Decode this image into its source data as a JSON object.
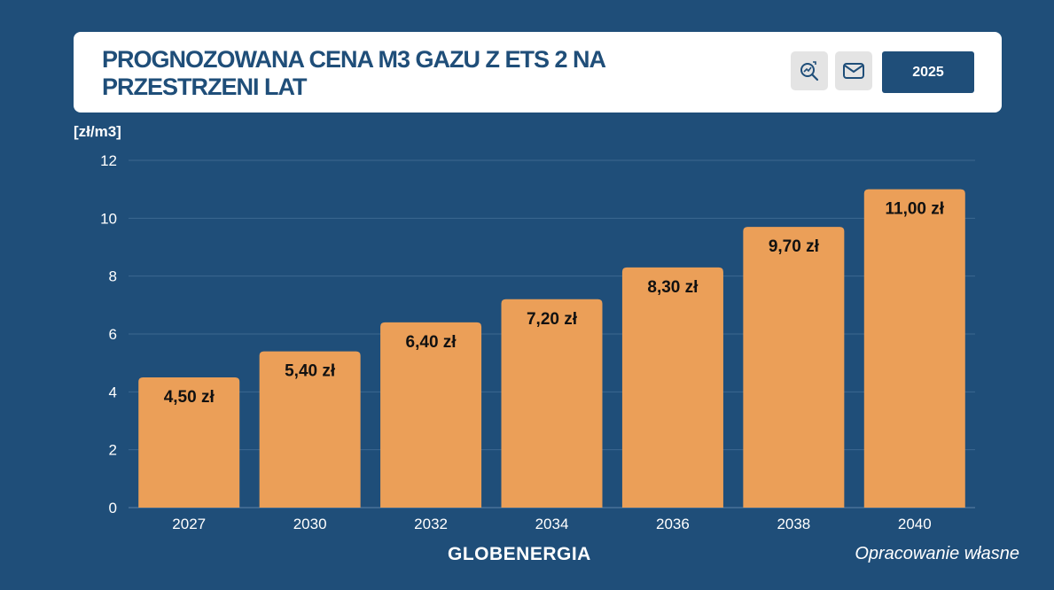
{
  "header": {
    "title_line1": "PROGNOZOWANA CENA M3 GAZU Z ETS 2 NA",
    "title_line2": "PRZESTRZENI LAT",
    "year_button": "2025",
    "icons": [
      "zoom-chart-icon",
      "mail-icon"
    ]
  },
  "chart_data": {
    "type": "bar",
    "title": "PROGNOZOWANA CENA M3 GAZU Z ETS 2 NA PRZESTRZENI LAT",
    "ylabel": "[zł/m3]",
    "categories": [
      "2027",
      "2030",
      "2032",
      "2034",
      "2036",
      "2038",
      "2040"
    ],
    "values": [
      4.5,
      5.4,
      6.4,
      7.2,
      8.3,
      9.7,
      11.0
    ],
    "data_labels": [
      "4,50 zł",
      "5,40 zł",
      "6,40 zł",
      "7,20 zł",
      "8,30 zł",
      "9,70 zł",
      "11,00 zł"
    ],
    "ylim": [
      0,
      12
    ],
    "yticks": [
      "0",
      "2",
      "4",
      "6",
      "8",
      "10",
      "12"
    ],
    "grid": true,
    "bar_color": "#eb9f58",
    "background_color": "#1f4e79"
  },
  "footer": {
    "logo": "GLOBENERGIA",
    "source": "Opracowanie własne"
  }
}
